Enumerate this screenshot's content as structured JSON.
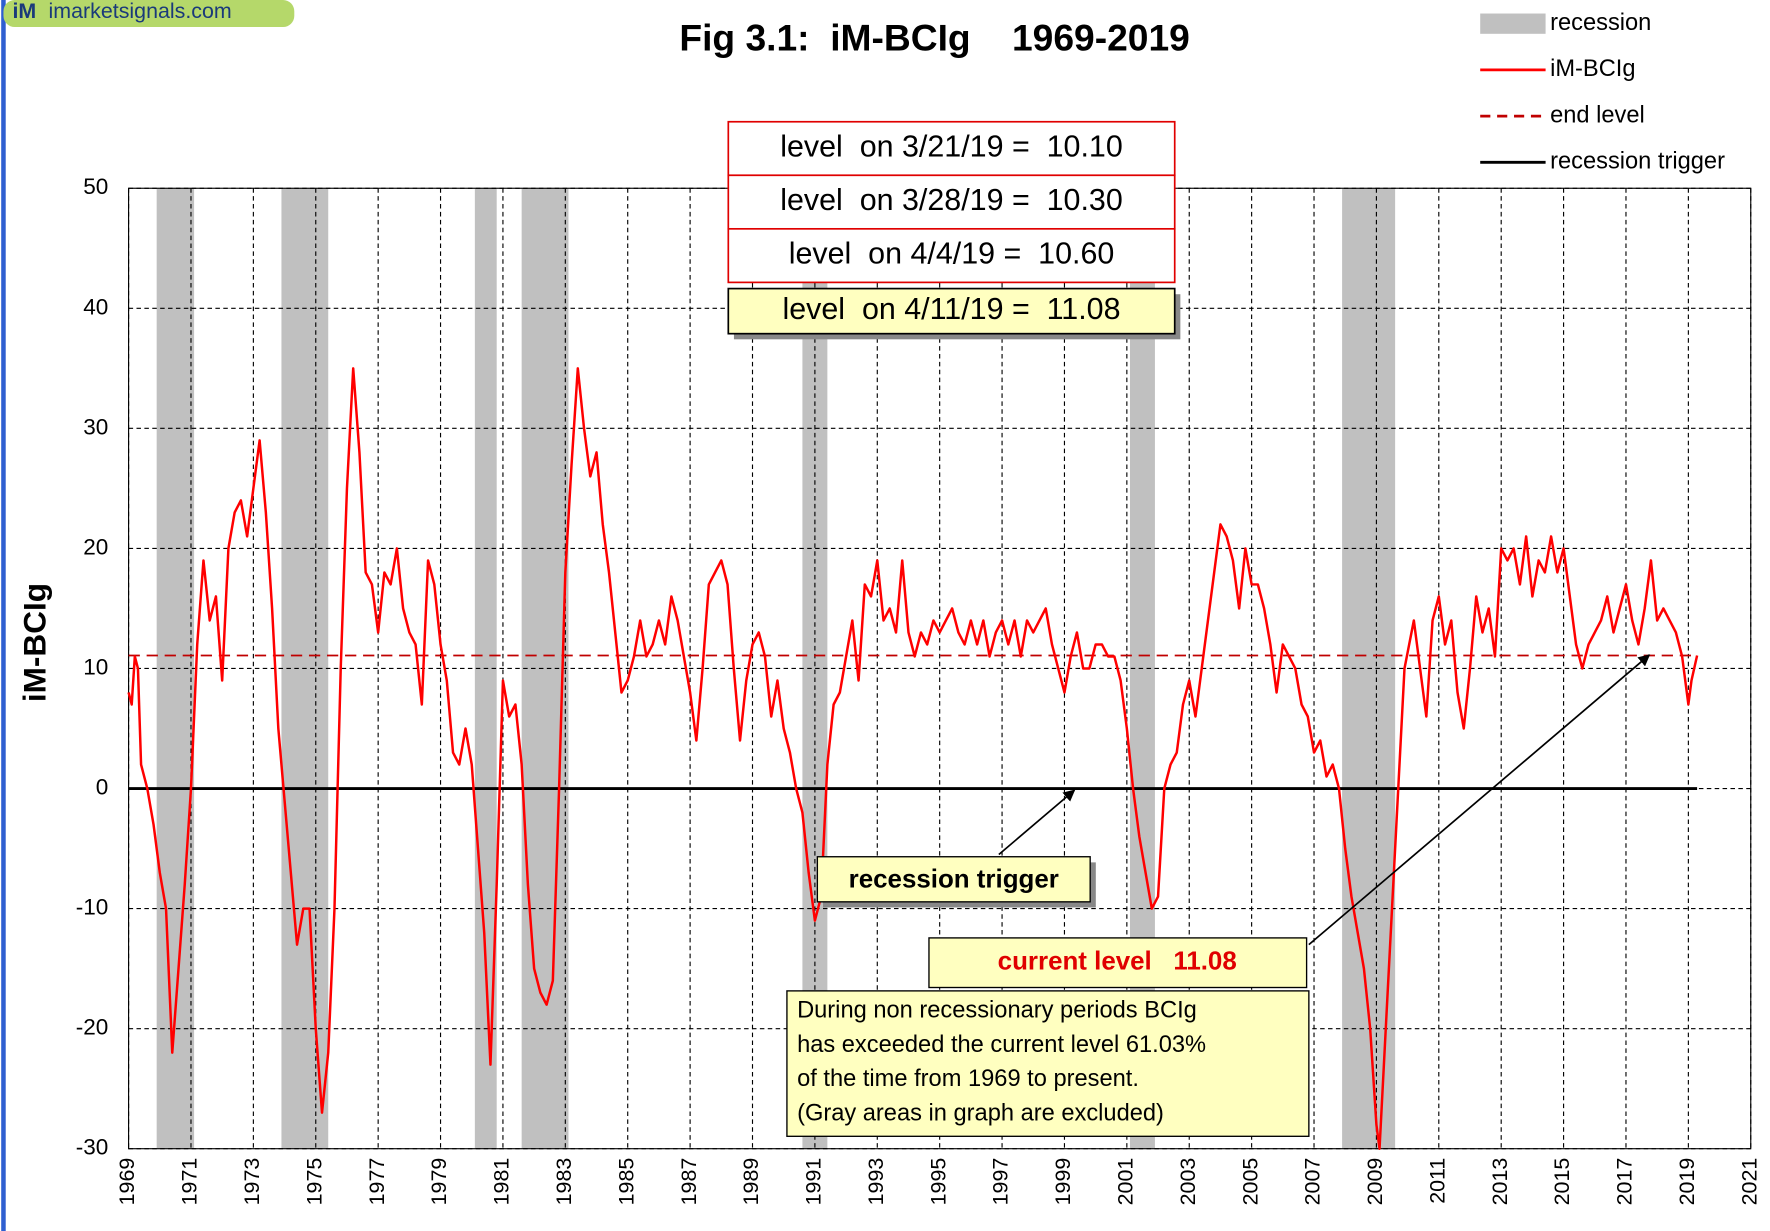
{
  "chart_data": {
    "type": "line",
    "title": "Fig 3.1:  iM-BCIg    1969-2019",
    "watermark": {
      "logo": "iM",
      "site": "imarketsignals.com"
    },
    "y_label": "iM-BCIg",
    "xlim": [
      1969,
      2021
    ],
    "xticks": [
      1969,
      1971,
      1973,
      1975,
      1977,
      1979,
      1981,
      1983,
      1985,
      1987,
      1989,
      1991,
      1993,
      1995,
      1997,
      1999,
      2001,
      2003,
      2005,
      2007,
      2009,
      2011,
      2013,
      2015,
      2017,
      2019,
      2021
    ],
    "ylim": [
      -30,
      50
    ],
    "yticks": [
      -30,
      -20,
      -10,
      0,
      10,
      20,
      30,
      40,
      50
    ],
    "grid": true,
    "recessions": {
      "name": "recession",
      "color": "#c0c0c0",
      "spans": [
        [
          1969.9,
          1971.1
        ],
        [
          1973.9,
          1975.4
        ],
        [
          1980.1,
          1980.8
        ],
        [
          1981.6,
          1983.1
        ],
        [
          1990.6,
          1991.4
        ],
        [
          2001.1,
          2001.9
        ],
        [
          2007.9,
          2009.6
        ]
      ]
    },
    "series": [
      {
        "name": "iM-BCIg",
        "color": "#ff0000",
        "x": [
          1969.0,
          1969.1,
          1969.2,
          1969.3,
          1969.4,
          1969.6,
          1969.8,
          1970.0,
          1970.2,
          1970.4,
          1970.6,
          1970.8,
          1971.0,
          1971.2,
          1971.4,
          1971.6,
          1971.8,
          1972.0,
          1972.2,
          1972.4,
          1972.6,
          1972.8,
          1973.0,
          1973.2,
          1973.4,
          1973.6,
          1973.8,
          1974.0,
          1974.2,
          1974.4,
          1974.6,
          1974.8,
          1975.0,
          1975.2,
          1975.4,
          1975.6,
          1975.8,
          1976.0,
          1976.2,
          1976.4,
          1976.6,
          1976.8,
          1977.0,
          1977.2,
          1977.4,
          1977.6,
          1977.8,
          1978.0,
          1978.2,
          1978.4,
          1978.6,
          1978.8,
          1979.0,
          1979.2,
          1979.4,
          1979.6,
          1979.8,
          1980.0,
          1980.2,
          1980.4,
          1980.6,
          1980.8,
          1981.0,
          1981.2,
          1981.4,
          1981.6,
          1981.8,
          1982.0,
          1982.2,
          1982.4,
          1982.6,
          1982.8,
          1983.0,
          1983.2,
          1983.4,
          1983.6,
          1983.8,
          1984.0,
          1984.2,
          1984.4,
          1984.6,
          1984.8,
          1985.0,
          1985.2,
          1985.4,
          1985.6,
          1985.8,
          1986.0,
          1986.2,
          1986.4,
          1986.6,
          1986.8,
          1987.0,
          1987.2,
          1987.4,
          1987.6,
          1987.8,
          1988.0,
          1988.2,
          1988.4,
          1988.6,
          1988.8,
          1989.0,
          1989.2,
          1989.4,
          1989.6,
          1989.8,
          1990.0,
          1990.2,
          1990.4,
          1990.6,
          1990.8,
          1991.0,
          1991.2,
          1991.4,
          1991.6,
          1991.8,
          1992.0,
          1992.2,
          1992.4,
          1992.6,
          1992.8,
          1993.0,
          1993.2,
          1993.4,
          1993.6,
          1993.8,
          1994.0,
          1994.2,
          1994.4,
          1994.6,
          1994.8,
          1995.0,
          1995.2,
          1995.4,
          1995.6,
          1995.8,
          1996.0,
          1996.2,
          1996.4,
          1996.6,
          1996.8,
          1997.0,
          1997.2,
          1997.4,
          1997.6,
          1997.8,
          1998.0,
          1998.2,
          1998.4,
          1998.6,
          1998.8,
          1999.0,
          1999.2,
          1999.4,
          1999.6,
          1999.8,
          2000.0,
          2000.2,
          2000.4,
          2000.6,
          2000.8,
          2001.0,
          2001.2,
          2001.4,
          2001.6,
          2001.8,
          2002.0,
          2002.2,
          2002.4,
          2002.6,
          2002.8,
          2003.0,
          2003.2,
          2003.4,
          2003.6,
          2003.8,
          2004.0,
          2004.2,
          2004.4,
          2004.6,
          2004.8,
          2005.0,
          2005.2,
          2005.4,
          2005.6,
          2005.8,
          2006.0,
          2006.2,
          2006.4,
          2006.6,
          2006.8,
          2007.0,
          2007.2,
          2007.4,
          2007.6,
          2007.8,
          2008.0,
          2008.2,
          2008.4,
          2008.6,
          2008.8,
          2009.0,
          2009.1,
          2009.3,
          2009.5,
          2009.7,
          2009.9,
          2010.2,
          2010.4,
          2010.6,
          2010.8,
          2011.0,
          2011.2,
          2011.4,
          2011.6,
          2011.8,
          2012.0,
          2012.2,
          2012.4,
          2012.6,
          2012.8,
          2013.0,
          2013.2,
          2013.4,
          2013.6,
          2013.8,
          2014.0,
          2014.2,
          2014.4,
          2014.6,
          2014.8,
          2015.0,
          2015.2,
          2015.4,
          2015.6,
          2015.8,
          2016.0,
          2016.2,
          2016.4,
          2016.6,
          2016.8,
          2017.0,
          2017.2,
          2017.4,
          2017.6,
          2017.8,
          2018.0,
          2018.2,
          2018.4,
          2018.6,
          2018.8,
          2019.0,
          2019.1,
          2019.28
        ],
        "values": [
          8,
          7,
          11,
          10,
          2,
          0,
          -3,
          -7,
          -10,
          -22,
          -15,
          -8,
          0,
          12,
          19,
          14,
          16,
          9,
          20,
          23,
          24,
          21,
          25,
          29,
          23,
          15,
          5,
          -1,
          -7,
          -13,
          -10,
          -10,
          -20,
          -27,
          -22,
          -10,
          10,
          25,
          35,
          28,
          18,
          17,
          13,
          18,
          17,
          20,
          15,
          13,
          12,
          7,
          19,
          17,
          12,
          9,
          3,
          2,
          5,
          2,
          -5,
          -12,
          -23,
          -8,
          9,
          6,
          7,
          2,
          -8,
          -15,
          -17,
          -18,
          -16,
          0,
          18,
          27,
          35,
          30,
          26,
          28,
          22,
          18,
          13,
          8,
          9,
          11,
          14,
          11,
          12,
          14,
          12,
          16,
          14,
          11,
          8,
          4,
          10,
          17,
          18,
          19,
          17,
          10,
          4,
          9,
          12,
          13,
          11,
          6,
          9,
          5,
          3,
          0,
          -2,
          -7,
          -11,
          -9,
          2,
          7,
          8,
          11,
          14,
          9,
          17,
          16,
          19,
          14,
          15,
          13,
          19,
          13,
          11,
          13,
          12,
          14,
          13,
          14,
          15,
          13,
          12,
          14,
          12,
          14,
          11,
          13,
          14,
          12,
          14,
          11,
          14,
          13,
          14,
          15,
          12,
          10,
          8,
          11,
          13,
          10,
          10,
          12,
          12,
          11,
          11,
          9,
          5,
          0,
          -4,
          -7,
          -10,
          -9,
          0,
          2,
          3,
          7,
          9,
          6,
          10,
          14,
          18,
          22,
          21,
          19,
          15,
          20,
          17,
          17,
          15,
          12,
          8,
          12,
          11,
          10,
          7,
          6,
          3,
          4,
          1,
          2,
          0,
          -5,
          -9,
          -12,
          -15,
          -20,
          -28,
          -30,
          -20,
          -10,
          0,
          10,
          14,
          10,
          6,
          14,
          16,
          12,
          14,
          8,
          5,
          10,
          16,
          13,
          15,
          11,
          20,
          19,
          20,
          17,
          21,
          16,
          19,
          18,
          21,
          18,
          20,
          16,
          12,
          10,
          12,
          13,
          14,
          16,
          13,
          15,
          17,
          14,
          12,
          15,
          19,
          14,
          15,
          14,
          13,
          11,
          7,
          9,
          11.08
        ]
      }
    ],
    "reference_lines": [
      {
        "name": "end level",
        "value": 11.08,
        "color": "#c00000",
        "style": "dashed"
      },
      {
        "name": "recession trigger",
        "value": 0,
        "color": "#000000",
        "style": "solid"
      }
    ],
    "level_table": [
      "level  on 3/21/19 =  10.10",
      "level  on 3/28/19 =  10.30",
      "level  on 4/4/19 =  10.60",
      "level  on 4/11/19 =  11.08"
    ],
    "annotations": {
      "trigger_label": "recession trigger",
      "current_level": "current level   11.08",
      "note": [
        "During non recessionary periods BCIg",
        "has exceeded the current level 61.03%",
        "of the time from 1969 to present.",
        "(Gray areas in graph are excluded)"
      ]
    }
  }
}
